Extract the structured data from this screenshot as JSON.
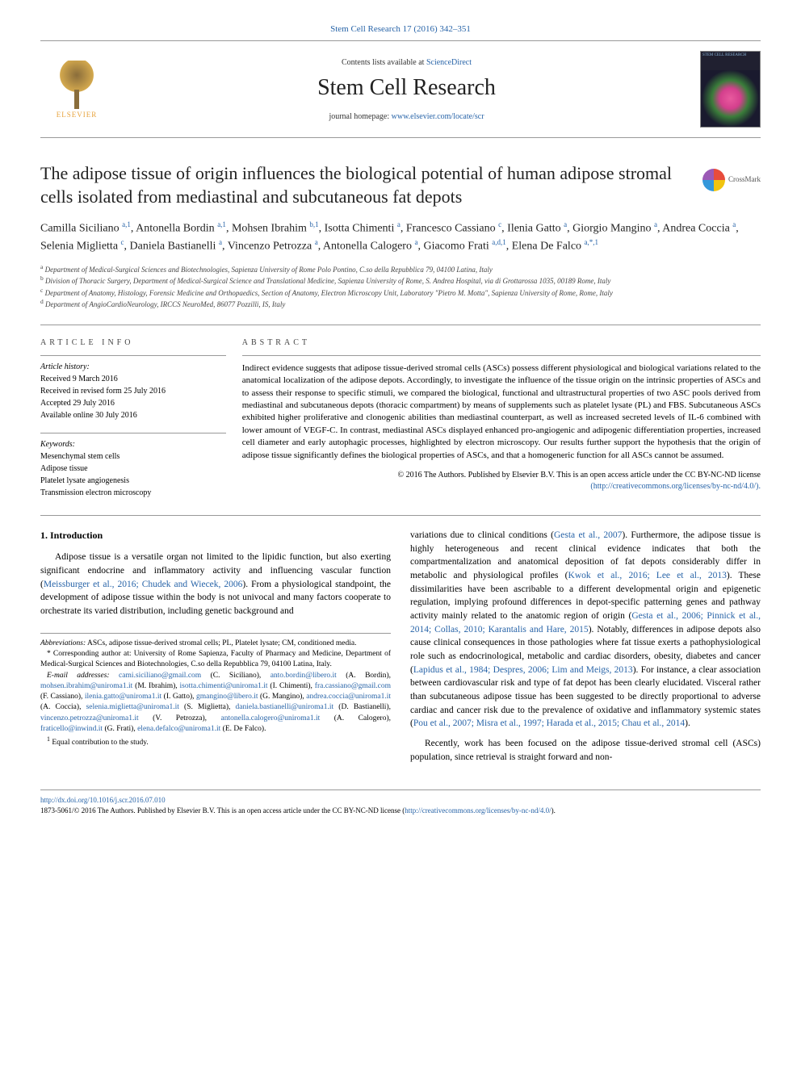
{
  "header": {
    "citation": "Stem Cell Research 17 (2016) 342–351",
    "contents_prefix": "Contents lists available at ",
    "contents_link": "ScienceDirect",
    "journal": "Stem Cell Research",
    "homepage_prefix": "journal homepage: ",
    "homepage_url": "www.elsevier.com/locate/scr",
    "elsevier": "ELSEVIER",
    "cover_label": "STEM CELL RESEARCH",
    "crossmark": "CrossMark"
  },
  "article": {
    "title": "The adipose tissue of origin influences the biological potential of human adipose stromal cells isolated from mediastinal and subcutaneous fat depots",
    "authors_html": "Camilla Siciliano <sup>a,1</sup>, Antonella Bordin <sup>a,1</sup>, Mohsen Ibrahim <sup>b,1</sup>, Isotta Chimenti <sup>a</sup>, Francesco Cassiano <sup>c</sup>, Ilenia Gatto <sup>a</sup>, Giorgio Mangino <sup>a</sup>, Andrea Coccia <sup>a</sup>, Selenia Miglietta <sup>c</sup>, Daniela Bastianelli <sup>a</sup>, Vincenzo Petrozza <sup>a</sup>, Antonella Calogero <sup>a</sup>, Giacomo Frati <sup>a,d,1</sup>, Elena De Falco <sup>a,*,1</sup>"
  },
  "affiliations": {
    "a": "Department of Medical-Surgical Sciences and Biotechnologies, Sapienza University of Rome Polo Pontino, C.so della Repubblica 79, 04100 Latina, Italy",
    "b": "Division of Thoracic Surgery, Department of Medical-Surgical Science and Translational Medicine, Sapienza University of Rome, S. Andrea Hospital, via di Grottarossa 1035, 00189 Rome, Italy",
    "c": "Department of Anatomy, Histology, Forensic Medicine and Orthopaedics, Section of Anatomy, Electron Microscopy Unit, Laboratory \"Pietro M. Motta\", Sapienza University of Rome, Rome, Italy",
    "d": "Department of AngioCardioNeurology, IRCCS NeuroMed, 86077 Pozzilli, IS, Italy"
  },
  "info": {
    "heading": "article info",
    "history_label": "Article history:",
    "received": "Received 9 March 2016",
    "revised": "Received in revised form 25 July 2016",
    "accepted": "Accepted 29 July 2016",
    "online": "Available online 30 July 2016",
    "keywords_label": "Keywords:",
    "keywords": [
      "Mesenchymal stem cells",
      "Adipose tissue",
      "Platelet lysate angiogenesis",
      "Transmission electron microscopy"
    ]
  },
  "abstract": {
    "heading": "abstract",
    "text": "Indirect evidence suggests that adipose tissue-derived stromal cells (ASCs) possess different physiological and biological variations related to the anatomical localization of the adipose depots. Accordingly, to investigate the influence of the tissue origin on the intrinsic properties of ASCs and to assess their response to specific stimuli, we compared the biological, functional and ultrastructural properties of two ASC pools derived from mediastinal and subcutaneous depots (thoracic compartment) by means of supplements such as platelet lysate (PL) and FBS. Subcutaneous ASCs exhibited higher proliferative and clonogenic abilities than mediastinal counterpart, as well as increased secreted levels of IL-6 combined with lower amount of VEGF-C. In contrast, mediastinal ASCs displayed enhanced pro-angiogenic and adipogenic differentiation properties, increased cell diameter and early autophagic processes, highlighted by electron microscopy. Our results further support the hypothesis that the origin of adipose tissue significantly defines the biological properties of ASCs, and that a homogeneric function for all ASCs cannot be assumed.",
    "copyright": "© 2016 The Authors. Published by Elsevier B.V. This is an open access article under the CC BY-NC-ND license",
    "license_url": "(http://creativecommons.org/licenses/by-nc-nd/4.0/)."
  },
  "body": {
    "intro_heading": "1. Introduction",
    "p1": "Adipose tissue is a versatile organ not limited to the lipidic function, but also exerting significant endocrine and inflammatory activity and influencing vascular function (",
    "p1_ref": "Meissburger et al., 2016; Chudek and Wiecek, 2006",
    "p1_cont": "). From a physiological standpoint, the development of adipose tissue within the body is not univocal and many factors cooperate to orchestrate its varied distribution, including genetic background and",
    "p2_start": "variations due to clinical conditions (",
    "p2_ref1": "Gesta et al., 2007",
    "p2_mid1": "). Furthermore, the adipose tissue is highly heterogeneous and recent clinical evidence indicates that both the compartmentalization and anatomical deposition of fat depots considerably differ in metabolic and physiological profiles (",
    "p2_ref2": "Kwok et al., 2016; Lee et al., 2013",
    "p2_mid2": "). These dissimilarities have been ascribable to a different developmental origin and epigenetic regulation, implying profound differences in depot-specific patterning genes and pathway activity mainly related to the anatomic region of origin (",
    "p2_ref3": "Gesta et al., 2006; Pinnick et al., 2014; Collas, 2010; Karantalis and Hare, 2015",
    "p2_mid3": "). Notably, differences in adipose depots also cause clinical consequences in those pathologies where fat tissue exerts a pathophysiological role such as endocrinological, metabolic and cardiac disorders, obesity, diabetes and cancer (",
    "p2_ref4": "Lapidus et al., 1984; Despres, 2006; Lim and Meigs, 2013",
    "p2_mid4": "). For instance, a clear association between cardiovascular risk and type of fat depot has been clearly elucidated. Visceral rather than subcutaneous adipose tissue has been suggested to be directly proportional to adverse cardiac and cancer risk due to the prevalence of oxidative and inflammatory systemic states (",
    "p2_ref5": "Pou et al., 2007; Misra et al., 1997; Harada et al., 2015; Chau et al., 2014",
    "p2_end": ").",
    "p3": "Recently, work has been focused on the adipose tissue-derived stromal cell (ASCs) population, since retrieval is straight forward and non-"
  },
  "footnotes": {
    "abbrev_label": "Abbreviations:",
    "abbrev": " ASCs, adipose tissue-derived stromal cells; PL, Platelet lysate; CM, conditioned media.",
    "corr": "* Corresponding author at: University of Rome Sapienza, Faculty of Pharmacy and Medicine, Department of Medical-Surgical Sciences and Biotechnologies, C.so della Repubblica 79, 04100 Latina, Italy.",
    "email_label": "E-mail addresses:",
    "emails": [
      {
        "e": "cami.siciliano@gmail.com",
        "n": " (C. Siciliano), "
      },
      {
        "e": "anto.bordin@libero.it",
        "n": " (A. Bordin), "
      },
      {
        "e": "mohsen.ibrahim@uniroma1.it",
        "n": " (M. Ibrahim), "
      },
      {
        "e": "isotta.chimenti@uniroma1.it",
        "n": " (I. Chimenti), "
      },
      {
        "e": "fra.cassiano@gmail.com",
        "n": " (F. Cassiano), "
      },
      {
        "e": "ilenia.gatto@uniroma1.it",
        "n": " (I. Gatto), "
      },
      {
        "e": "gmangino@libero.it",
        "n": " (G. Mangino), "
      },
      {
        "e": "andrea.coccia@uniroma1.it",
        "n": " (A. Coccia), "
      },
      {
        "e": "selenia.miglietta@uniroma1.it",
        "n": " (S. Miglietta), "
      },
      {
        "e": "daniela.bastianelli@uniroma1.it",
        "n": " (D. Bastianelli), "
      },
      {
        "e": "vincenzo.petrozza@uniroma1.it",
        "n": " (V. Petrozza), "
      },
      {
        "e": "antonella.calogero@uniroma1.it",
        "n": " (A. Calogero), "
      },
      {
        "e": "fraticello@inwind.it",
        "n": " (G. Frati), "
      },
      {
        "e": "elena.defalco@uniroma1.it",
        "n": " (E. De Falco)."
      }
    ],
    "equal": "Equal contribution to the study."
  },
  "footer": {
    "doi": "http://dx.doi.org/10.1016/j.scr.2016.07.010",
    "issn": "1873-5061/© 2016 The Authors. Published by Elsevier B.V. This is an open access article under the CC BY-NC-ND license (",
    "license": "http://creativecommons.org/licenses/by-nc-nd/4.0/",
    "close": ")."
  },
  "colors": {
    "link": "#2864a8",
    "text": "#000000",
    "rule": "#999999"
  }
}
